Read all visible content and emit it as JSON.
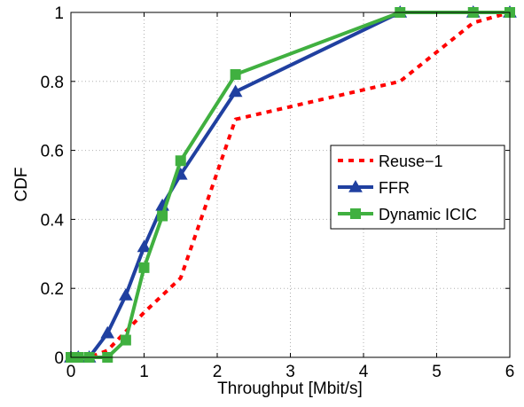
{
  "chart_data": {
    "type": "line",
    "xlabel": "Throughput [Mbit/s]",
    "ylabel": "CDF",
    "xlim": [
      0,
      6
    ],
    "ylim": [
      0,
      1
    ],
    "xticks": [
      "0",
      "1",
      "2",
      "3",
      "4",
      "5",
      "6"
    ],
    "yticks": [
      "0",
      "0.2",
      "0.4",
      "0.6",
      "0.8",
      "1"
    ],
    "grid": "on",
    "legend_position": "right",
    "series": [
      {
        "name": "Reuse−1",
        "color": "#ff0000",
        "style": "dotted",
        "marker": "none",
        "x": [
          0,
          0.25,
          0.5,
          1.0,
          1.5,
          2.25,
          4.5,
          5.5,
          6.0
        ],
        "y": [
          0,
          0,
          0.02,
          0.13,
          0.23,
          0.69,
          0.8,
          0.97,
          1.0
        ]
      },
      {
        "name": "FFR",
        "color": "#2040a0",
        "style": "solid",
        "marker": "triangle",
        "x": [
          0,
          0.1,
          0.25,
          0.5,
          0.75,
          1.0,
          1.25,
          1.5,
          2.25,
          4.5,
          5.5,
          6.0
        ],
        "y": [
          0,
          0,
          0,
          0.07,
          0.18,
          0.32,
          0.44,
          0.53,
          0.77,
          1.0,
          1.0,
          1.0
        ]
      },
      {
        "name": "Dynamic ICIC",
        "color": "#40b040",
        "style": "solid",
        "marker": "square",
        "x": [
          0,
          0.1,
          0.25,
          0.5,
          0.75,
          1.0,
          1.25,
          1.5,
          2.25,
          4.5,
          5.5,
          6.0
        ],
        "y": [
          0,
          0,
          0,
          0,
          0.05,
          0.26,
          0.41,
          0.57,
          0.82,
          1.0,
          1.0,
          1.0
        ]
      }
    ]
  }
}
